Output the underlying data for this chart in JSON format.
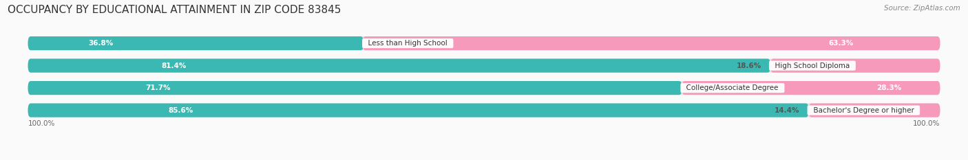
{
  "title": "OCCUPANCY BY EDUCATIONAL ATTAINMENT IN ZIP CODE 83845",
  "source": "Source: ZipAtlas.com",
  "categories": [
    "Less than High School",
    "High School Diploma",
    "College/Associate Degree",
    "Bachelor's Degree or higher"
  ],
  "owner_values": [
    36.8,
    81.4,
    71.7,
    85.6
  ],
  "renter_values": [
    63.3,
    18.6,
    28.3,
    14.4
  ],
  "owner_color": "#3CB8B2",
  "renter_color": "#F799BB",
  "background_color": "#FAFAFA",
  "bar_bg_color": "#E4E4E4",
  "title_fontsize": 11,
  "source_fontsize": 7.5,
  "label_fontsize": 7.5,
  "cat_fontsize": 7.5,
  "axis_label_fontsize": 7.5,
  "legend_fontsize": 8
}
